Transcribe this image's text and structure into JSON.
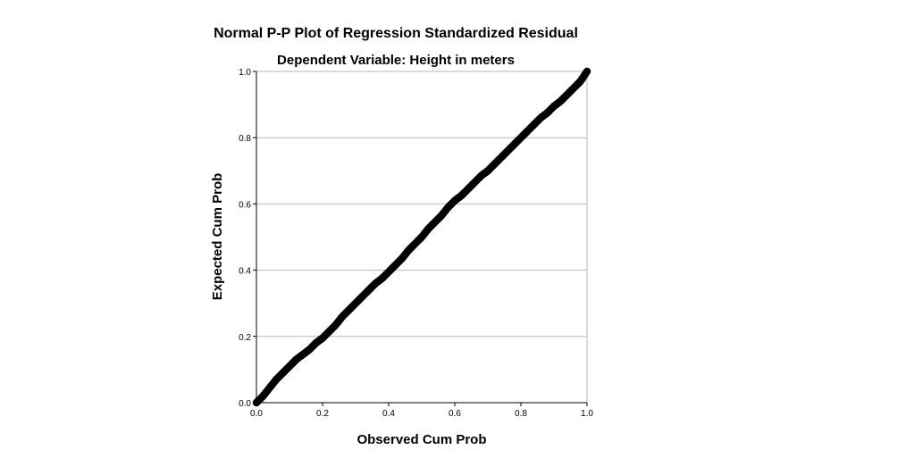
{
  "chart_data": {
    "type": "scatter",
    "title": "Normal P-P Plot of Regression Standardized Residual",
    "subtitle": "Dependent Variable: Height in meters",
    "xlabel": "Observed Cum Prob",
    "ylabel": "Expected Cum Prob",
    "xlim": [
      0.0,
      1.0
    ],
    "ylim": [
      0.0,
      1.0
    ],
    "x_ticks": [
      "0.0",
      "0.2",
      "0.4",
      "0.6",
      "0.8",
      "1.0"
    ],
    "y_ticks": [
      "0.0",
      "0.2",
      "0.4",
      "0.6",
      "0.8",
      "1.0"
    ],
    "grid": "horizontal",
    "marker_color": "#000000",
    "series": [
      {
        "x": [
          0.0,
          0.02,
          0.04,
          0.06,
          0.08,
          0.1,
          0.12,
          0.14,
          0.16,
          0.18,
          0.2,
          0.22,
          0.24,
          0.26,
          0.28,
          0.3,
          0.32,
          0.34,
          0.36,
          0.38,
          0.4,
          0.42,
          0.44,
          0.46,
          0.48,
          0.5,
          0.52,
          0.54,
          0.56,
          0.58,
          0.6,
          0.62,
          0.64,
          0.66,
          0.68,
          0.7,
          0.72,
          0.74,
          0.76,
          0.78,
          0.8,
          0.82,
          0.84,
          0.86,
          0.88,
          0.9,
          0.92,
          0.94,
          0.96,
          0.98,
          1.0
        ],
        "y": [
          0.0,
          0.02,
          0.045,
          0.07,
          0.09,
          0.11,
          0.13,
          0.145,
          0.16,
          0.18,
          0.195,
          0.215,
          0.235,
          0.26,
          0.28,
          0.3,
          0.32,
          0.34,
          0.36,
          0.375,
          0.395,
          0.415,
          0.435,
          0.46,
          0.48,
          0.5,
          0.525,
          0.545,
          0.565,
          0.59,
          0.61,
          0.625,
          0.645,
          0.665,
          0.685,
          0.7,
          0.72,
          0.74,
          0.76,
          0.78,
          0.8,
          0.82,
          0.84,
          0.86,
          0.875,
          0.895,
          0.91,
          0.93,
          0.95,
          0.97,
          1.0
        ]
      }
    ]
  }
}
